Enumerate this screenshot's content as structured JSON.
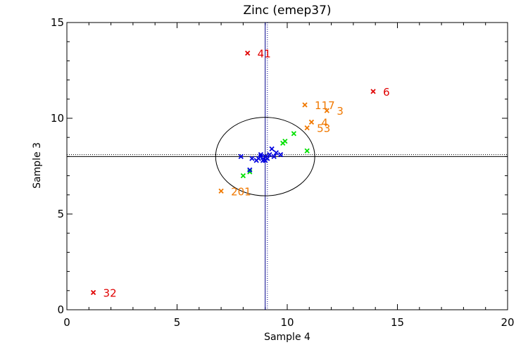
{
  "chart_data": {
    "type": "scatter",
    "title": "Zinc (emep37)",
    "xlabel": "Sample 4",
    "ylabel": "Sample 3",
    "xlim": [
      0,
      20
    ],
    "ylim": [
      0,
      15
    ],
    "xticks": [
      0,
      5,
      10,
      15,
      20
    ],
    "yticks": [
      0,
      5,
      10,
      15
    ],
    "grid": false,
    "marker": "x",
    "colors": {
      "red": "#e00000",
      "orange": "#f07800",
      "green": "#00e000",
      "blue": "#0000e0",
      "axis": "#000000",
      "ref_blue": "#00008b"
    },
    "reference_lines": {
      "vertical_solid_x": 9.0,
      "vertical_dotted_x": 9.1,
      "horizontal_solid_y": 8.0,
      "horizontal_dotted_y": 8.1
    },
    "ellipse": {
      "cx": 9.0,
      "cy": 8.0,
      "rx": 2.25,
      "ry": 2.05
    },
    "series": [
      {
        "name": "red",
        "color": "#e00000",
        "points": [
          {
            "x": 8.2,
            "y": 13.4,
            "label": "41"
          },
          {
            "x": 13.9,
            "y": 11.4,
            "label": "6"
          },
          {
            "x": 1.2,
            "y": 0.9,
            "label": "32"
          }
        ]
      },
      {
        "name": "orange",
        "color": "#f07800",
        "points": [
          {
            "x": 10.8,
            "y": 10.7,
            "label": "117"
          },
          {
            "x": 11.8,
            "y": 10.4,
            "label": "3"
          },
          {
            "x": 11.1,
            "y": 9.8,
            "label": "4"
          },
          {
            "x": 10.9,
            "y": 9.5,
            "label": "53"
          },
          {
            "x": 7.0,
            "y": 6.2,
            "label": "201"
          }
        ]
      },
      {
        "name": "green",
        "color": "#00e000",
        "points": [
          {
            "x": 10.3,
            "y": 9.2
          },
          {
            "x": 9.9,
            "y": 8.8
          },
          {
            "x": 9.8,
            "y": 8.7
          },
          {
            "x": 10.9,
            "y": 8.3
          },
          {
            "x": 8.0,
            "y": 7.0
          },
          {
            "x": 8.3,
            "y": 7.2
          }
        ]
      },
      {
        "name": "blue",
        "color": "#0000e0",
        "points": [
          {
            "x": 9.3,
            "y": 8.4
          },
          {
            "x": 9.5,
            "y": 8.2
          },
          {
            "x": 9.7,
            "y": 8.1
          },
          {
            "x": 9.2,
            "y": 8.1
          },
          {
            "x": 9.0,
            "y": 8.0
          },
          {
            "x": 8.8,
            "y": 8.0
          },
          {
            "x": 8.7,
            "y": 7.9
          },
          {
            "x": 8.9,
            "y": 7.8
          },
          {
            "x": 9.1,
            "y": 7.9
          },
          {
            "x": 9.4,
            "y": 8.0
          },
          {
            "x": 8.6,
            "y": 7.8
          },
          {
            "x": 8.4,
            "y": 7.9
          },
          {
            "x": 7.9,
            "y": 8.0
          },
          {
            "x": 8.3,
            "y": 7.3
          },
          {
            "x": 9.0,
            "y": 7.8
          },
          {
            "x": 8.8,
            "y": 8.1
          }
        ]
      }
    ]
  }
}
